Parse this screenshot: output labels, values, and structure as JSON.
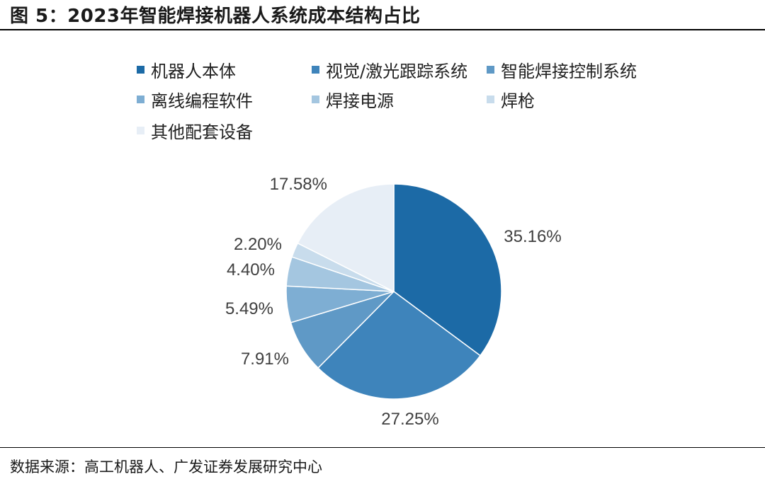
{
  "title": "图 5：2023年智能焊接机器人系统成本结构占比",
  "source": "数据来源：高工机器人、广发证券发展研究中心",
  "chart_data": {
    "type": "pie",
    "title": "",
    "legend_position": "top",
    "slices": [
      {
        "label": "机器人本体",
        "value": 35.16,
        "value_label": "35.16%",
        "color": "#1c6aa6"
      },
      {
        "label": "视觉/激光跟踪系统",
        "value": 27.25,
        "value_label": "27.25%",
        "color": "#3e84bb"
      },
      {
        "label": "智能焊接控制系统",
        "value": 7.91,
        "value_label": "7.91%",
        "color": "#5f99c6"
      },
      {
        "label": "离线编程软件",
        "value": 5.49,
        "value_label": "5.49%",
        "color": "#7eaed3"
      },
      {
        "label": "焊接电源",
        "value": 4.4,
        "value_label": "4.40%",
        "color": "#a4c6e0"
      },
      {
        "label": "焊枪",
        "value": 2.2,
        "value_label": "2.20%",
        "color": "#c8dcec"
      },
      {
        "label": "其他配套设备",
        "value": 17.58,
        "value_label": "17.58%",
        "color": "#e7eef6"
      }
    ]
  }
}
